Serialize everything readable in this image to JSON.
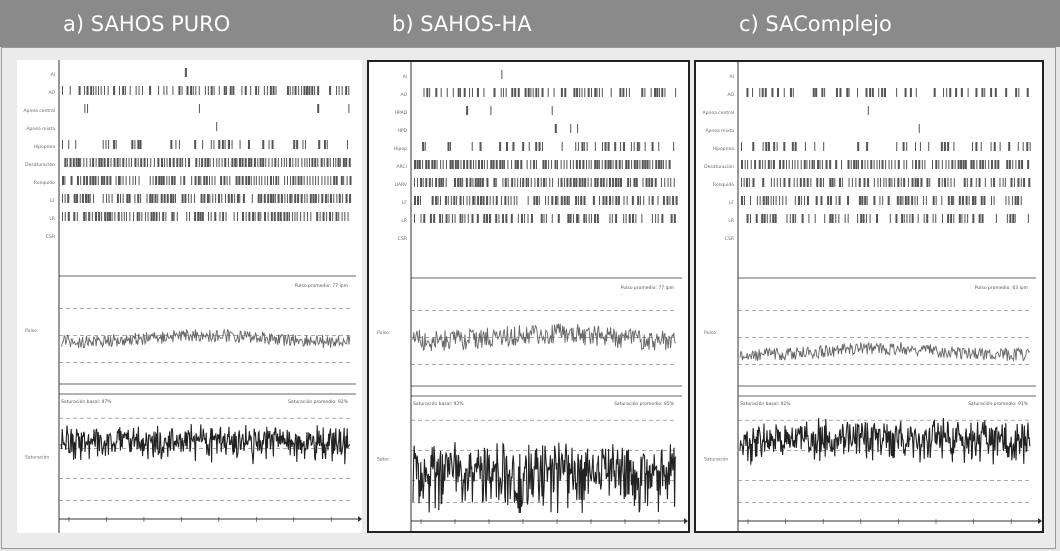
{
  "figure": {
    "panels": [
      {
        "title": "a) SAHOS PURO",
        "row_labels": [
          "AI",
          "AO",
          "Apnea central",
          "Apnea mixta",
          "Hipopnea",
          "Desaturación",
          "Ronquido",
          "LF",
          "LR",
          "CSR"
        ],
        "pulse_label": "Pulso",
        "pulse_header": "Pulso promedio: 77 lpm",
        "sat_label": "Saturación",
        "sat_header_left": "Saturación basal: 97%",
        "sat_header_right": "Saturación promedio: 92%",
        "pulse_level": 0.58,
        "sat_level": 0.35,
        "pulse_noise": 0.06,
        "sat_noise": 0.25,
        "density": [
          0.05,
          0.8,
          0.15,
          0.05,
          0.4,
          0.97,
          0.9,
          0.9,
          0.85,
          0.0
        ]
      },
      {
        "title": "b) SAHOS-HA",
        "row_labels": [
          "AI",
          "AO",
          "HPAD",
          "HPD",
          "Hipop",
          "ARCI",
          "UARV",
          "LF",
          "LR",
          "CSR"
        ],
        "pulse_label": "Pulso",
        "pulse_header": "Pulso promedio: 77 lpm",
        "sat_label": "Satur.",
        "sat_header_left": "Saturación basal: 92%",
        "sat_header_right": "Saturación promedio: 85%",
        "pulse_level": 0.55,
        "sat_level": 0.55,
        "pulse_noise": 0.1,
        "sat_noise": 0.5,
        "density": [
          0.02,
          0.6,
          0.1,
          0.1,
          0.45,
          0.95,
          0.85,
          0.8,
          0.7,
          0.0
        ]
      },
      {
        "title": "c) SAComplejo",
        "row_labels": [
          "AI",
          "AO",
          "Apnea central",
          "Apnea mixta",
          "Hipopnea",
          "Desaturación",
          "Ronquido",
          "LF",
          "LR",
          "CSR"
        ],
        "pulse_label": "Pulso",
        "pulse_header": "Pulso promedio: 63 lpm",
        "sat_label": "Saturación",
        "sat_header_left": "Saturación basal: 92%",
        "sat_header_right": "Saturación promedio: 91%",
        "pulse_level": 0.68,
        "sat_level": 0.3,
        "pulse_noise": 0.06,
        "sat_noise": 0.3,
        "density": [
          0.05,
          0.5,
          0.02,
          0.02,
          0.35,
          0.85,
          0.8,
          0.65,
          0.6,
          0.0
        ]
      }
    ]
  },
  "colors": {
    "header_bg": "#8a8a8a",
    "title_text": "#ffffff",
    "trace": "#222222",
    "bar": "#555555"
  }
}
